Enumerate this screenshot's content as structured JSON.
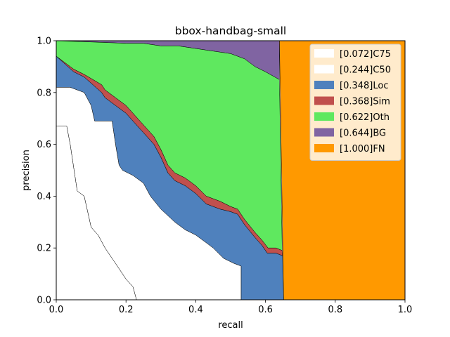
{
  "chart_data": {
    "type": "area",
    "title": "bbox-handbag-small",
    "xlabel": "recall",
    "ylabel": "precision",
    "xlim": [
      0,
      1
    ],
    "ylim": [
      0,
      1
    ],
    "xticks": [
      "0.0",
      "0.2",
      "0.4",
      "0.6",
      "0.8",
      "1.0"
    ],
    "yticks": [
      "0.0",
      "0.2",
      "0.4",
      "0.6",
      "0.8",
      "1.0"
    ],
    "grid": false,
    "legend_position": "top-right",
    "series": [
      {
        "name": "[1.000]FN",
        "color": "#ff9900",
        "points": [
          [
            0.64,
            1.0
          ],
          [
            1.0,
            1.0
          ],
          [
            1.0,
            0.0
          ],
          [
            0.652,
            0.0
          ]
        ]
      },
      {
        "name": "[0.644]BG",
        "color": "#8064a2",
        "points": [
          [
            0.0,
            1.0
          ],
          [
            0.64,
            1.0
          ],
          [
            0.64,
            0.85
          ],
          [
            0.6,
            0.88
          ],
          [
            0.57,
            0.9
          ],
          [
            0.54,
            0.93
          ],
          [
            0.5,
            0.95
          ],
          [
            0.45,
            0.96
          ],
          [
            0.4,
            0.97
          ],
          [
            0.35,
            0.98
          ],
          [
            0.3,
            0.98
          ],
          [
            0.25,
            0.99
          ],
          [
            0.2,
            0.99
          ],
          [
            0.1,
            0.995
          ],
          [
            0.0,
            1.0
          ]
        ]
      },
      {
        "name": "[0.622]Oth",
        "color": "#5fe85f",
        "points": [
          [
            0.0,
            1.0
          ],
          [
            0.1,
            0.995
          ],
          [
            0.2,
            0.99
          ],
          [
            0.25,
            0.99
          ],
          [
            0.3,
            0.98
          ],
          [
            0.35,
            0.98
          ],
          [
            0.4,
            0.97
          ],
          [
            0.45,
            0.96
          ],
          [
            0.5,
            0.95
          ],
          [
            0.54,
            0.93
          ],
          [
            0.57,
            0.9
          ],
          [
            0.6,
            0.88
          ],
          [
            0.64,
            0.85
          ],
          [
            0.648,
            0.19
          ],
          [
            0.63,
            0.2
          ],
          [
            0.607,
            0.2
          ],
          [
            0.59,
            0.23
          ],
          [
            0.57,
            0.26
          ],
          [
            0.54,
            0.31
          ],
          [
            0.52,
            0.35
          ],
          [
            0.5,
            0.36
          ],
          [
            0.47,
            0.38
          ],
          [
            0.43,
            0.4
          ],
          [
            0.4,
            0.44
          ],
          [
            0.37,
            0.47
          ],
          [
            0.34,
            0.49
          ],
          [
            0.32,
            0.52
          ],
          [
            0.31,
            0.55
          ],
          [
            0.3,
            0.58
          ],
          [
            0.28,
            0.63
          ],
          [
            0.26,
            0.66
          ],
          [
            0.24,
            0.69
          ],
          [
            0.22,
            0.72
          ],
          [
            0.2,
            0.75
          ],
          [
            0.17,
            0.78
          ],
          [
            0.14,
            0.81
          ],
          [
            0.13,
            0.83
          ],
          [
            0.08,
            0.87
          ],
          [
            0.05,
            0.89
          ],
          [
            0.0,
            0.94
          ]
        ]
      },
      {
        "name": "[0.368]Sim",
        "color": "#c0504d",
        "points": [
          [
            0.0,
            0.94
          ],
          [
            0.05,
            0.89
          ],
          [
            0.08,
            0.87
          ],
          [
            0.13,
            0.83
          ],
          [
            0.14,
            0.81
          ],
          [
            0.17,
            0.78
          ],
          [
            0.2,
            0.75
          ],
          [
            0.22,
            0.72
          ],
          [
            0.24,
            0.69
          ],
          [
            0.26,
            0.66
          ],
          [
            0.28,
            0.63
          ],
          [
            0.3,
            0.58
          ],
          [
            0.31,
            0.55
          ],
          [
            0.32,
            0.52
          ],
          [
            0.34,
            0.49
          ],
          [
            0.37,
            0.47
          ],
          [
            0.4,
            0.44
          ],
          [
            0.43,
            0.4
          ],
          [
            0.47,
            0.38
          ],
          [
            0.5,
            0.36
          ],
          [
            0.52,
            0.35
          ],
          [
            0.54,
            0.31
          ],
          [
            0.57,
            0.26
          ],
          [
            0.59,
            0.23
          ],
          [
            0.607,
            0.2
          ],
          [
            0.63,
            0.2
          ],
          [
            0.648,
            0.19
          ],
          [
            0.649,
            0.17
          ],
          [
            0.63,
            0.18
          ],
          [
            0.605,
            0.18
          ],
          [
            0.59,
            0.21
          ],
          [
            0.57,
            0.24
          ],
          [
            0.54,
            0.29
          ],
          [
            0.52,
            0.33
          ],
          [
            0.5,
            0.34
          ],
          [
            0.47,
            0.35
          ],
          [
            0.43,
            0.37
          ],
          [
            0.4,
            0.41
          ],
          [
            0.37,
            0.44
          ],
          [
            0.34,
            0.46
          ],
          [
            0.32,
            0.49
          ],
          [
            0.31,
            0.52
          ],
          [
            0.3,
            0.55
          ],
          [
            0.28,
            0.6
          ],
          [
            0.26,
            0.63
          ],
          [
            0.24,
            0.66
          ],
          [
            0.22,
            0.69
          ],
          [
            0.2,
            0.72
          ],
          [
            0.17,
            0.75
          ],
          [
            0.14,
            0.78
          ],
          [
            0.13,
            0.8
          ],
          [
            0.08,
            0.86
          ],
          [
            0.05,
            0.88
          ],
          [
            0.0,
            0.94
          ]
        ]
      },
      {
        "name": "[0.348]Loc",
        "color": "#4f81bd",
        "points": [
          [
            0.0,
            0.94
          ],
          [
            0.05,
            0.88
          ],
          [
            0.08,
            0.86
          ],
          [
            0.13,
            0.8
          ],
          [
            0.14,
            0.78
          ],
          [
            0.17,
            0.75
          ],
          [
            0.2,
            0.72
          ],
          [
            0.22,
            0.69
          ],
          [
            0.24,
            0.66
          ],
          [
            0.26,
            0.63
          ],
          [
            0.28,
            0.6
          ],
          [
            0.3,
            0.55
          ],
          [
            0.31,
            0.52
          ],
          [
            0.32,
            0.49
          ],
          [
            0.34,
            0.46
          ],
          [
            0.37,
            0.44
          ],
          [
            0.4,
            0.41
          ],
          [
            0.43,
            0.37
          ],
          [
            0.47,
            0.35
          ],
          [
            0.5,
            0.34
          ],
          [
            0.52,
            0.33
          ],
          [
            0.54,
            0.29
          ],
          [
            0.57,
            0.24
          ],
          [
            0.59,
            0.21
          ],
          [
            0.605,
            0.18
          ],
          [
            0.63,
            0.18
          ],
          [
            0.649,
            0.17
          ],
          [
            0.652,
            0.0
          ],
          [
            0.53,
            0.0
          ],
          [
            0.53,
            0.13
          ],
          [
            0.51,
            0.14
          ],
          [
            0.48,
            0.16
          ],
          [
            0.45,
            0.2
          ],
          [
            0.43,
            0.22
          ],
          [
            0.4,
            0.25
          ],
          [
            0.37,
            0.27
          ],
          [
            0.34,
            0.3
          ],
          [
            0.3,
            0.35
          ],
          [
            0.27,
            0.4
          ],
          [
            0.25,
            0.45
          ],
          [
            0.22,
            0.48
          ],
          [
            0.19,
            0.5
          ],
          [
            0.18,
            0.52
          ],
          [
            0.17,
            0.6
          ],
          [
            0.16,
            0.69
          ],
          [
            0.11,
            0.69
          ],
          [
            0.1,
            0.75
          ],
          [
            0.08,
            0.8
          ],
          [
            0.04,
            0.82
          ],
          [
            0.0,
            0.82
          ]
        ]
      },
      {
        "name": "[0.244]C50",
        "color": "#ffffff",
        "points": [
          [
            0.0,
            0.82
          ],
          [
            0.04,
            0.82
          ],
          [
            0.08,
            0.8
          ],
          [
            0.1,
            0.75
          ],
          [
            0.11,
            0.69
          ],
          [
            0.16,
            0.69
          ],
          [
            0.17,
            0.6
          ],
          [
            0.18,
            0.52
          ],
          [
            0.19,
            0.5
          ],
          [
            0.22,
            0.48
          ],
          [
            0.25,
            0.45
          ],
          [
            0.27,
            0.4
          ],
          [
            0.3,
            0.35
          ],
          [
            0.34,
            0.3
          ],
          [
            0.37,
            0.27
          ],
          [
            0.4,
            0.25
          ],
          [
            0.43,
            0.22
          ],
          [
            0.45,
            0.2
          ],
          [
            0.48,
            0.16
          ],
          [
            0.51,
            0.14
          ],
          [
            0.53,
            0.13
          ],
          [
            0.53,
            0.0
          ],
          [
            0.23,
            0.0
          ],
          [
            0.22,
            0.05
          ],
          [
            0.2,
            0.08
          ],
          [
            0.18,
            0.12
          ],
          [
            0.16,
            0.16
          ],
          [
            0.14,
            0.2
          ],
          [
            0.12,
            0.25
          ],
          [
            0.1,
            0.28
          ],
          [
            0.08,
            0.4
          ],
          [
            0.06,
            0.42
          ],
          [
            0.04,
            0.6
          ],
          [
            0.03,
            0.67
          ],
          [
            0.0,
            0.67
          ]
        ]
      },
      {
        "name": "[0.072]C75",
        "color": "#ffffff",
        "points": [
          [
            0.0,
            0.67
          ],
          [
            0.03,
            0.67
          ],
          [
            0.04,
            0.6
          ],
          [
            0.06,
            0.42
          ],
          [
            0.08,
            0.4
          ],
          [
            0.1,
            0.28
          ],
          [
            0.12,
            0.25
          ],
          [
            0.14,
            0.2
          ],
          [
            0.16,
            0.16
          ],
          [
            0.18,
            0.12
          ],
          [
            0.2,
            0.08
          ],
          [
            0.22,
            0.05
          ],
          [
            0.23,
            0.0
          ],
          [
            0.0,
            0.0
          ]
        ]
      }
    ],
    "legend": [
      {
        "label": "[0.072]C75",
        "color": "#ffffff"
      },
      {
        "label": "[0.244]C50",
        "color": "#ffffff"
      },
      {
        "label": "[0.348]Loc",
        "color": "#4f81bd"
      },
      {
        "label": "[0.368]Sim",
        "color": "#c0504d"
      },
      {
        "label": "[0.622]Oth",
        "color": "#5fe85f"
      },
      {
        "label": "[0.644]BG",
        "color": "#8064a2"
      },
      {
        "label": "[1.000]FN",
        "color": "#ff9900"
      }
    ]
  }
}
